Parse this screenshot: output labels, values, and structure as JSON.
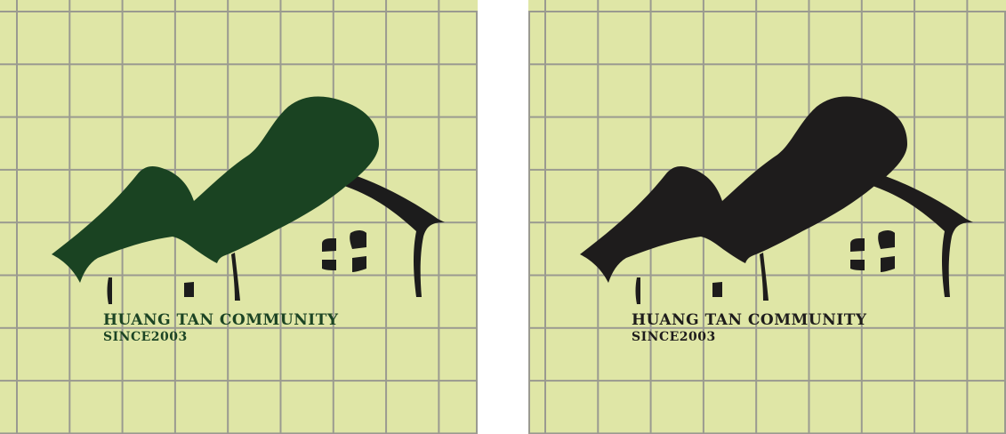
{
  "panels": [
    {
      "id": "green-variant",
      "logo_color": "#1a4322",
      "accent_color": "#1c1c1c",
      "text_color": "#1c4424",
      "background": "#dfe6a6",
      "grid_color": "#9a9a90",
      "community_name": "HUANG TAN COMMUNITY",
      "since": "SINCE2003"
    },
    {
      "id": "black-variant",
      "logo_color": "#1e1c1c",
      "accent_color": "#1e1c1c",
      "text_color": "#1e1c1c",
      "background": "#dfe6a6",
      "grid_color": "#9a9a90",
      "community_name": "HUANG TAN COMMUNITY",
      "since": "SINCE2003"
    }
  ]
}
